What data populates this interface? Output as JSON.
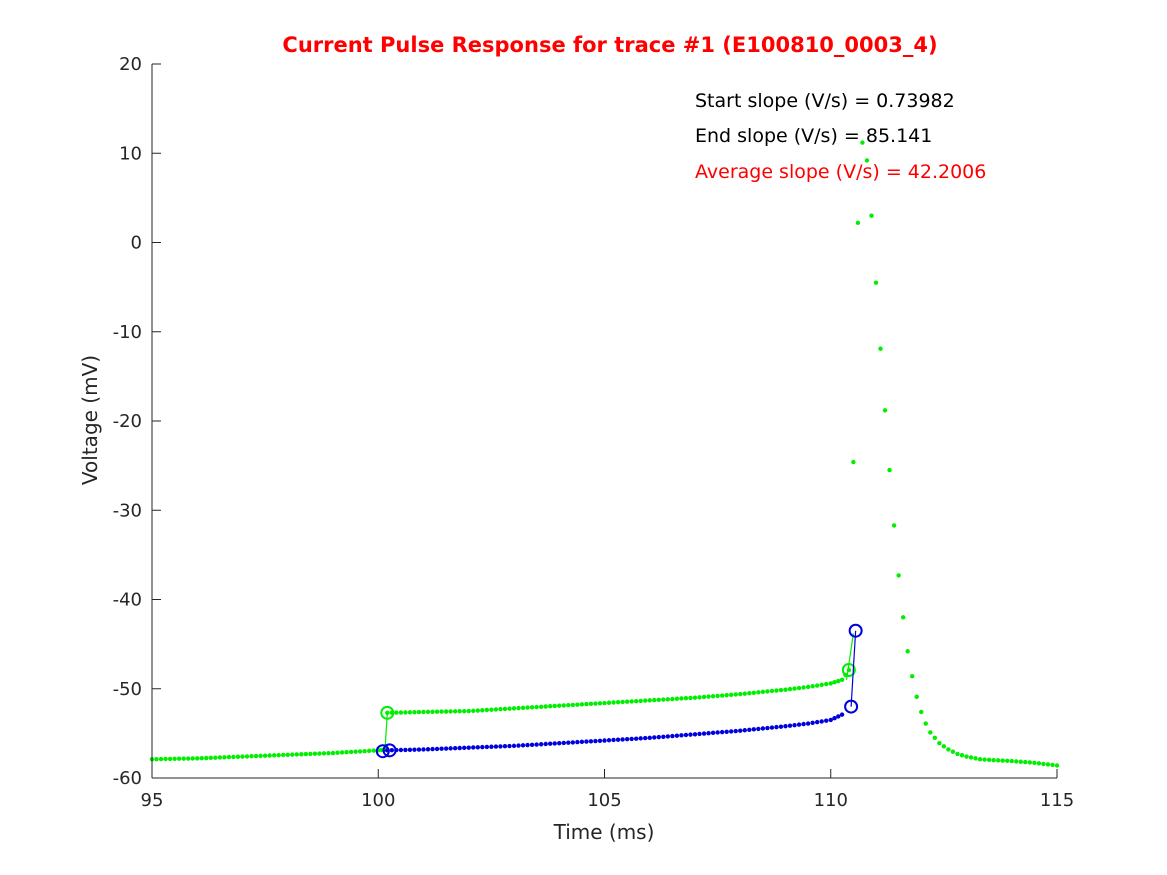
{
  "chart_data": {
    "type": "scatter",
    "title": "Current Pulse Response for trace #1 (E100810_0003_4)",
    "title_color": "#ff0000",
    "xlabel": "Time (ms)",
    "ylabel": "Voltage (mV)",
    "xlim": [
      95,
      115
    ],
    "ylim": [
      -60,
      20
    ],
    "xticks": [
      95,
      100,
      105,
      110,
      115
    ],
    "yticks": [
      -60,
      -50,
      -40,
      -30,
      -20,
      -10,
      0,
      10,
      20
    ],
    "grid": false,
    "annotations": [
      {
        "text": "Start slope (V/s) = 0.73982",
        "color": "#000000"
      },
      {
        "text": "End slope (V/s) = 85.141",
        "color": "#000000"
      },
      {
        "text": "Average slope (V/s) = 42.2006",
        "color": "#ff0000"
      }
    ],
    "series": [
      {
        "color": "#00ee00",
        "segments": [
          {
            "x": [
              95,
              96,
              97,
              98,
              99,
              100,
              100.15
            ],
            "y": [
              -57.9,
              -57.8,
              -57.6,
              -57.4,
              -57.2,
              -56.9,
              -56.8
            ]
          },
          {
            "x": [
              100.2,
              101,
              102,
              103,
              104,
              105,
              106,
              107,
              108,
              109,
              109.5,
              110,
              110.25,
              110.4
            ],
            "y": [
              -52.7,
              -52.6,
              -52.5,
              -52.2,
              -51.9,
              -51.6,
              -51.3,
              -51.0,
              -50.6,
              -50.1,
              -49.8,
              -49.4,
              -49.0,
              -47.9
            ]
          },
          {
            "x": [
              110.5,
              110.6,
              110.7,
              110.8,
              110.9,
              111.0,
              111.1,
              111.2,
              111.3,
              111.4,
              111.5,
              111.6,
              111.7,
              111.8,
              111.9,
              112.0,
              112.1,
              112.2,
              112.4,
              112.6,
              112.8,
              113.0,
              113.3,
              113.6,
              114.0,
              114.5,
              115.0
            ],
            "y": [
              -24.6,
              2.2,
              11.2,
              9.2,
              3.0,
              -4.5,
              -11.9,
              -18.8,
              -25.5,
              -31.7,
              -37.3,
              -42.0,
              -45.8,
              -48.6,
              -50.9,
              -52.6,
              -53.9,
              -54.9,
              -56.1,
              -56.8,
              -57.3,
              -57.6,
              -57.9,
              -58.0,
              -58.1,
              -58.3,
              -58.6
            ]
          }
        ],
        "markers": [
          {
            "x": 100.2,
            "y": -52.7
          },
          {
            "x": 110.4,
            "y": -47.9
          }
        ],
        "connectors": [
          {
            "x": [
              100.15,
              100.2
            ],
            "y": [
              -56.8,
              -52.7
            ]
          },
          {
            "x": [
              110.35,
              110.5
            ],
            "y": [
              -49.0,
              -43.8
            ]
          }
        ]
      },
      {
        "color": "#0000dd",
        "segments": [
          {
            "x": [
              100.2,
              101,
              102,
              103,
              104,
              105,
              106,
              107,
              108,
              109,
              109.5,
              110,
              110.25
            ],
            "y": [
              -56.9,
              -56.8,
              -56.6,
              -56.4,
              -56.1,
              -55.8,
              -55.5,
              -55.1,
              -54.7,
              -54.2,
              -53.9,
              -53.5,
              -52.9
            ]
          }
        ],
        "markers": [
          {
            "x": 100.1,
            "y": -57.0
          },
          {
            "x": 100.25,
            "y": -56.9
          },
          {
            "x": 110.45,
            "y": -52.0
          },
          {
            "x": 110.55,
            "y": -43.5
          }
        ],
        "connectors": [
          {
            "x": [
              100.25,
              100.1
            ],
            "y": [
              -56.9,
              -57.0
            ]
          },
          {
            "x": [
              110.45,
              110.55
            ],
            "y": [
              -52.0,
              -43.5
            ]
          }
        ]
      }
    ]
  }
}
